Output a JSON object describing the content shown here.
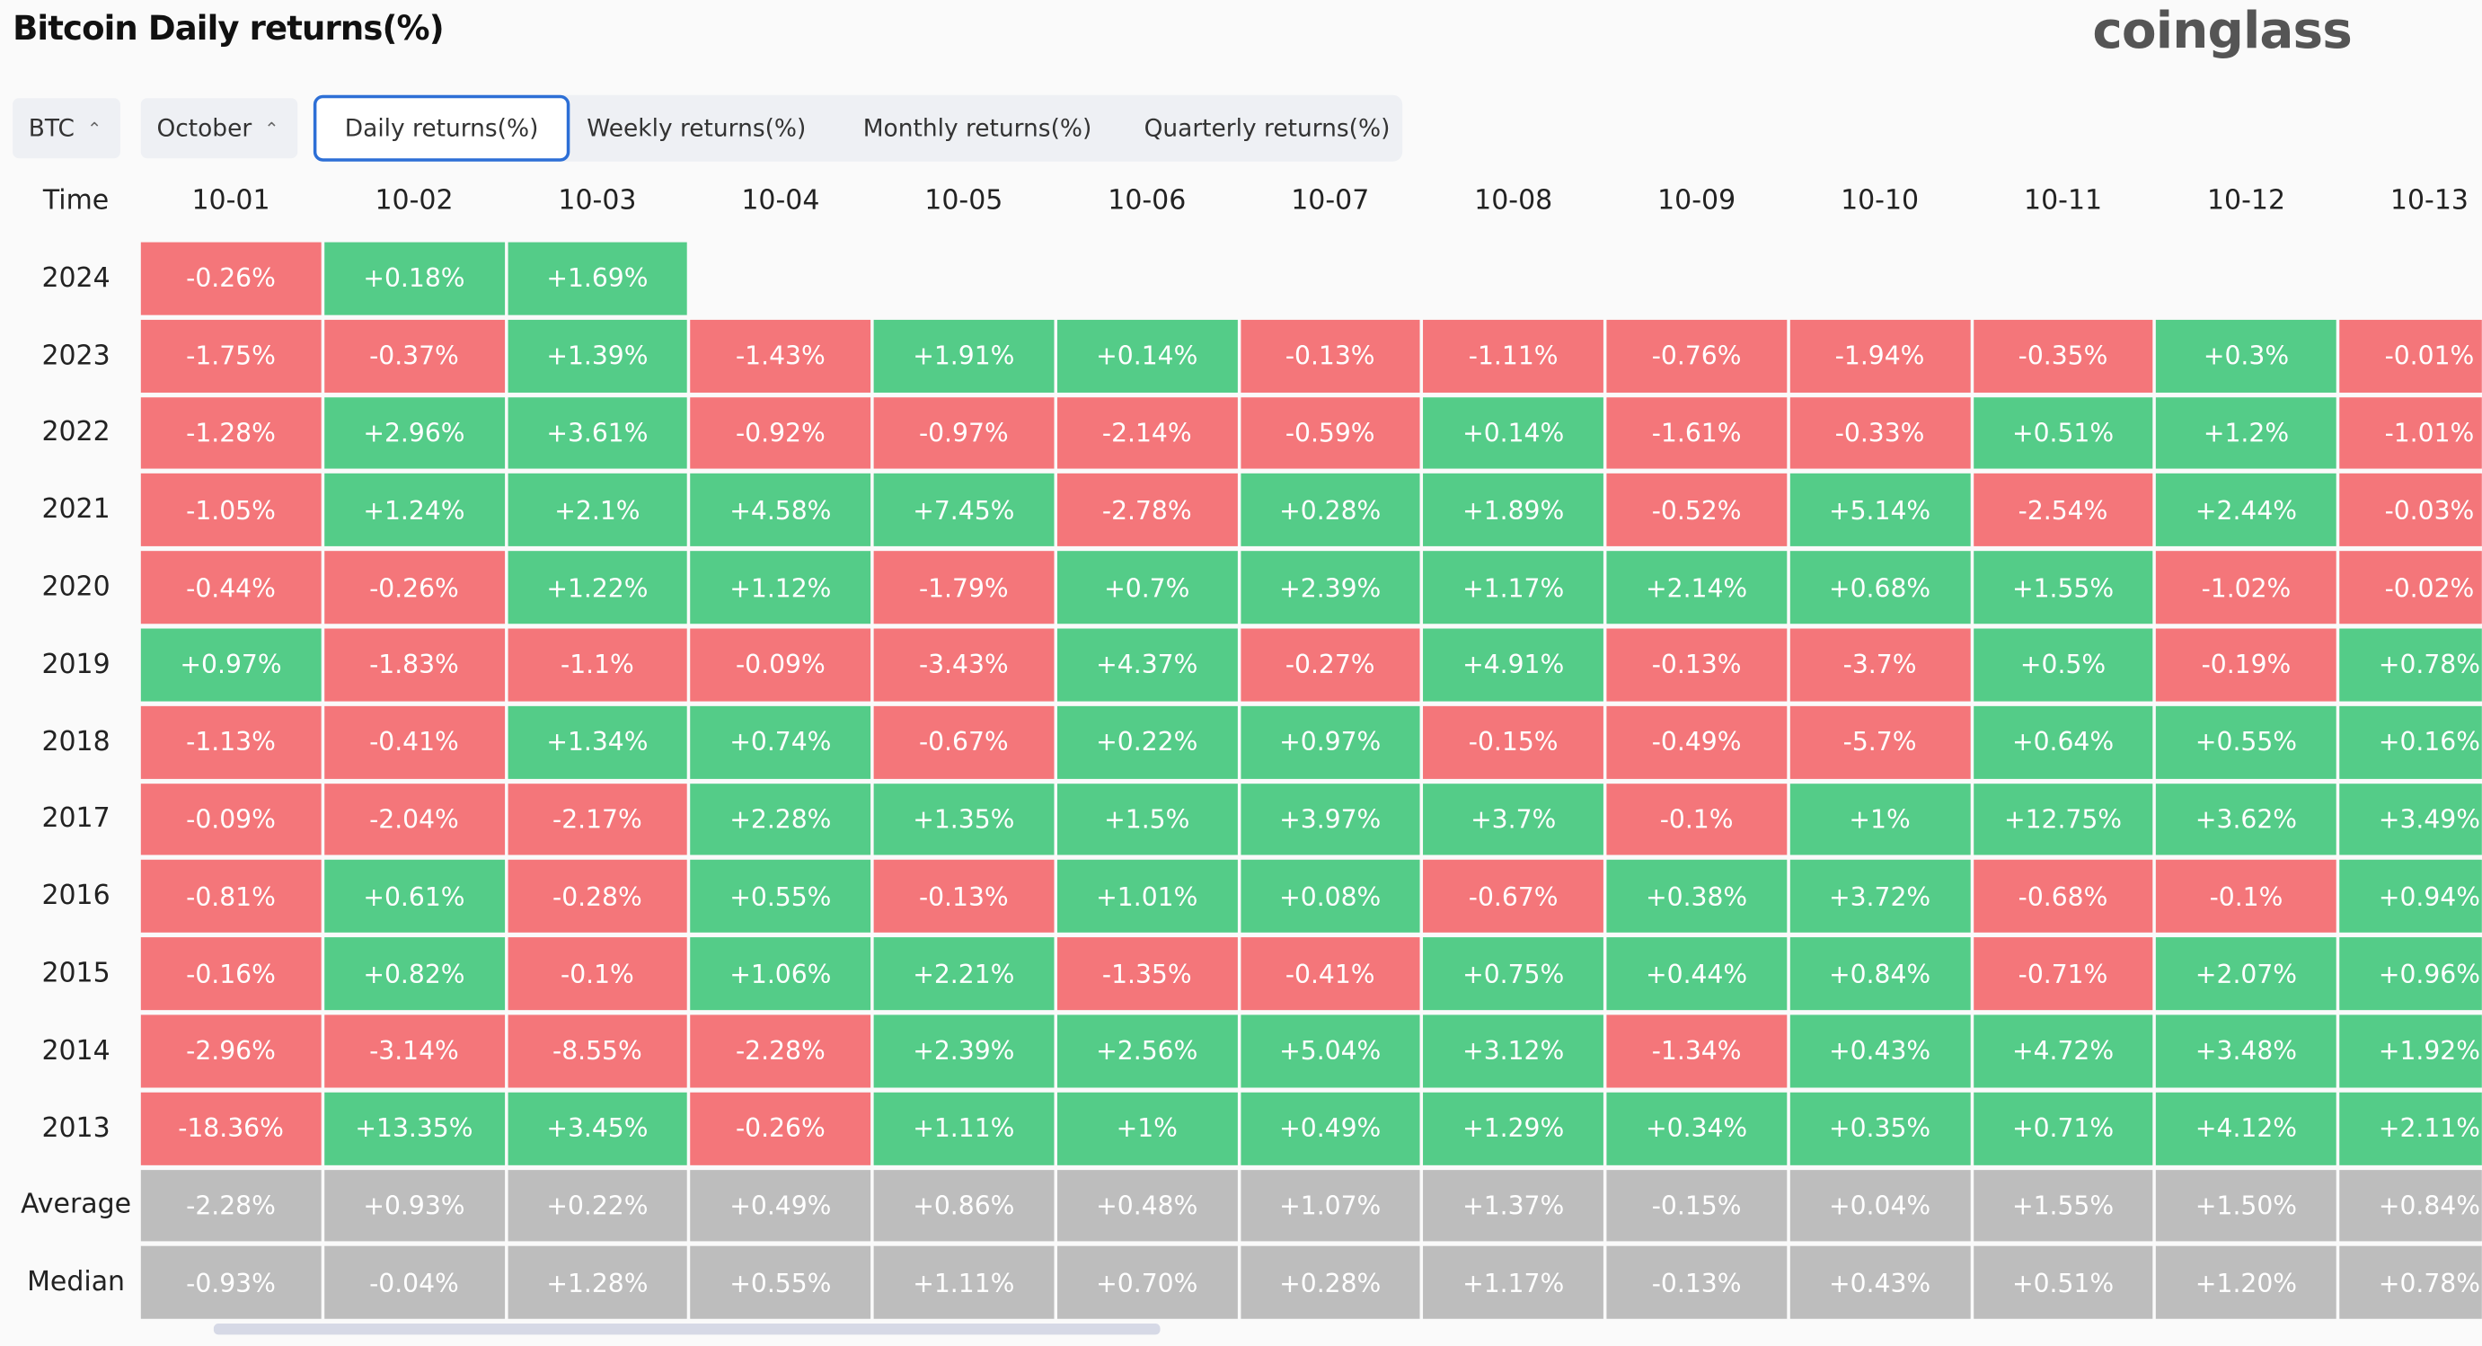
{
  "header": {
    "title": "Bitcoin Daily returns(%)",
    "logo": "coinglass"
  },
  "controls": {
    "coin": "BTC",
    "month": "October",
    "tabs": [
      "Daily returns(%)",
      "Weekly returns(%)",
      "Monthly returns(%)",
      "Quarterly returns(%)"
    ]
  },
  "table": {
    "columns": [
      "Time",
      "10-01",
      "10-02",
      "10-03",
      "10-04",
      "10-05",
      "10-06",
      "10-07",
      "10-08",
      "10-09",
      "10-10",
      "10-11",
      "10-12",
      "10-13"
    ],
    "rows": [
      [
        "2024",
        "-0.26%",
        "+0.18%",
        "+1.69%"
      ],
      [
        "2023",
        "-1.75%",
        "-0.37%",
        "+1.39%",
        "-1.43%",
        "+1.91%",
        "+0.14%",
        "-0.13%",
        "-1.11%",
        "-0.76%",
        "-1.94%",
        "-0.35%",
        "+0.3%",
        "-0.01%"
      ],
      [
        "2022",
        "-1.28%",
        "+2.96%",
        "+3.61%",
        "-0.92%",
        "-0.97%",
        "-2.14%",
        "-0.59%",
        "+0.14%",
        "-1.61%",
        "-0.33%",
        "+0.51%",
        "+1.2%",
        "-1.01%"
      ],
      [
        "2021",
        "-1.05%",
        "+1.24%",
        "+2.1%",
        "+4.58%",
        "+7.45%",
        "-2.78%",
        "+0.28%",
        "+1.89%",
        "-0.52%",
        "+5.14%",
        "-2.54%",
        "+2.44%",
        "-0.03%"
      ],
      [
        "2020",
        "-0.44%",
        "-0.26%",
        "+1.22%",
        "+1.12%",
        "-1.79%",
        "+0.7%",
        "+2.39%",
        "+1.17%",
        "+2.14%",
        "+0.68%",
        "+1.55%",
        "-1.02%",
        "-0.02%"
      ],
      [
        "2019",
        "+0.97%",
        "-1.83%",
        "-1.1%",
        "-0.09%",
        "-3.43%",
        "+4.37%",
        "-0.27%",
        "+4.91%",
        "-0.13%",
        "-3.7%",
        "+0.5%",
        "-0.19%",
        "+0.78%"
      ],
      [
        "2018",
        "-1.13%",
        "-0.41%",
        "+1.34%",
        "+0.74%",
        "-0.67%",
        "+0.22%",
        "+0.97%",
        "-0.15%",
        "-0.49%",
        "-5.7%",
        "+0.64%",
        "+0.55%",
        "+0.16%"
      ],
      [
        "2017",
        "-0.09%",
        "-2.04%",
        "-2.17%",
        "+2.28%",
        "+1.35%",
        "+1.5%",
        "+3.97%",
        "+3.7%",
        "-0.1%",
        "+1%",
        "+12.75%",
        "+3.62%",
        "+3.49%"
      ],
      [
        "2016",
        "-0.81%",
        "+0.61%",
        "-0.28%",
        "+0.55%",
        "-0.13%",
        "+1.01%",
        "+0.08%",
        "-0.67%",
        "+0.38%",
        "+3.72%",
        "-0.68%",
        "-0.1%",
        "+0.94%"
      ],
      [
        "2015",
        "-0.16%",
        "+0.82%",
        "-0.1%",
        "+1.06%",
        "+2.21%",
        "-1.35%",
        "-0.41%",
        "+0.75%",
        "+0.44%",
        "+0.84%",
        "-0.71%",
        "+2.07%",
        "+0.96%"
      ],
      [
        "2014",
        "-2.96%",
        "-3.14%",
        "-8.55%",
        "-2.28%",
        "+2.39%",
        "+2.56%",
        "+5.04%",
        "+3.12%",
        "-1.34%",
        "+0.43%",
        "+4.72%",
        "+3.48%",
        "+1.92%"
      ],
      [
        "2013",
        "-18.36%",
        "+13.35%",
        "+3.45%",
        "-0.26%",
        "+1.11%",
        "+1%",
        "+0.49%",
        "+1.29%",
        "+0.34%",
        "+0.35%",
        "+0.71%",
        "+4.12%",
        "+2.11%"
      ]
    ],
    "summary_rows": [
      [
        "Average",
        "-2.28%",
        "+0.93%",
        "+0.22%",
        "+0.49%",
        "+0.86%",
        "+0.48%",
        "+1.07%",
        "+1.37%",
        "-0.15%",
        "+0.04%",
        "+1.55%",
        "+1.50%",
        "+0.84%"
      ],
      [
        "Median",
        "-0.93%",
        "-0.04%",
        "+1.28%",
        "+0.55%",
        "+1.11%",
        "+0.70%",
        "+0.28%",
        "+1.17%",
        "-0.13%",
        "+0.43%",
        "+0.51%",
        "+1.20%",
        "+0.78%"
      ]
    ]
  }
}
